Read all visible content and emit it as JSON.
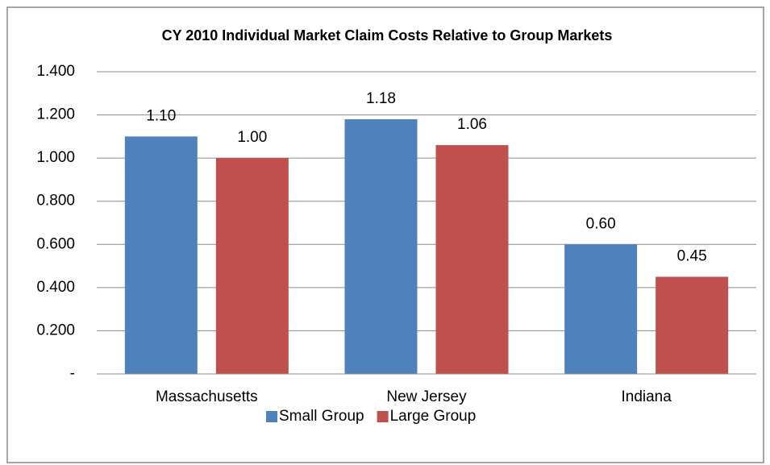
{
  "chart_data": {
    "type": "bar",
    "title": "CY 2010 Individual  Market Claim Costs Relative to Group Markets",
    "categories": [
      "Massachusetts",
      "New Jersey",
      "Indiana"
    ],
    "series": [
      {
        "name": "Small Group",
        "color": "#4f81bd",
        "values": [
          1.1,
          1.18,
          0.6
        ],
        "value_labels": [
          "1.10",
          "1.18",
          "0.60"
        ]
      },
      {
        "name": "Large Group",
        "color": "#c0504d",
        "values": [
          1.0,
          1.06,
          0.45
        ],
        "value_labels": [
          "1.00",
          "1.06",
          "0.45"
        ]
      }
    ],
    "ylim": [
      0,
      1.4
    ],
    "yticks": [
      {
        "value": 0,
        "label": "-"
      },
      {
        "value": 0.2,
        "label": "0.200"
      },
      {
        "value": 0.4,
        "label": "0.400"
      },
      {
        "value": 0.6,
        "label": "0.600"
      },
      {
        "value": 0.8,
        "label": "0.800"
      },
      {
        "value": 1.0,
        "label": "1.000"
      },
      {
        "value": 1.2,
        "label": "1.200"
      },
      {
        "value": 1.4,
        "label": "1.400"
      }
    ],
    "grid": true,
    "legend": "bottom"
  }
}
